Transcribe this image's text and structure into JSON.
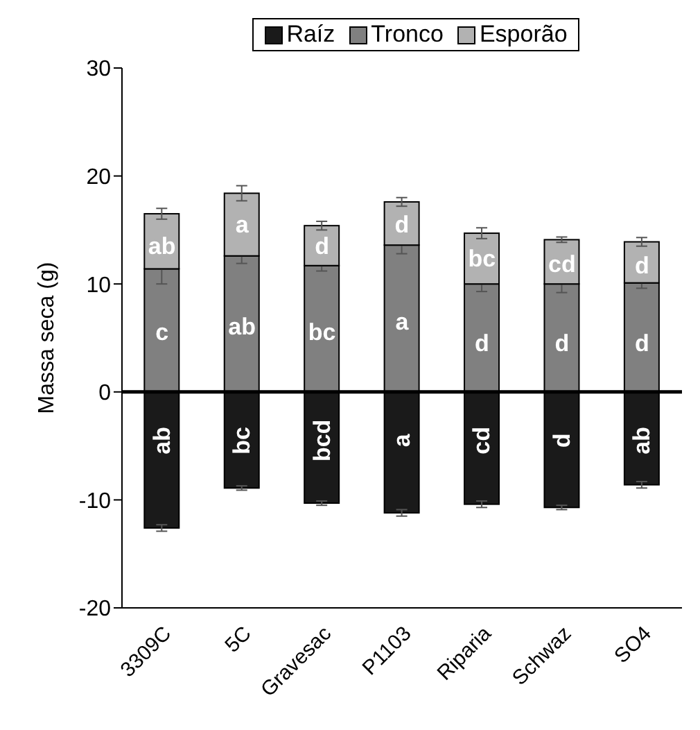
{
  "chart_data": {
    "type": "bar",
    "stacked": true,
    "categories": [
      "3309C",
      "5C",
      "Gravesac",
      "P1103",
      "Riparia",
      "Schwaz",
      "SO4"
    ],
    "series": [
      {
        "name": "Raíz",
        "color": "#1a1a1a",
        "values": [
          -12.6,
          -8.9,
          -10.3,
          -11.2,
          -10.4,
          -10.7,
          -8.6
        ],
        "errors": [
          0.3,
          0.2,
          0.2,
          0.3,
          0.3,
          0.2,
          0.3
        ]
      },
      {
        "name": "Tronco",
        "color": "#808080",
        "values": [
          11.4,
          12.6,
          11.7,
          13.6,
          10.0,
          10.0,
          10.1
        ],
        "errors": [
          1.4,
          0.7,
          0.5,
          0.8,
          0.7,
          0.8,
          0.5
        ]
      },
      {
        "name": "Esporão",
        "color": "#b2b2b2",
        "values": [
          5.1,
          5.8,
          3.7,
          4.0,
          4.7,
          4.1,
          3.8
        ],
        "errors": [
          0.5,
          0.7,
          0.4,
          0.4,
          0.5,
          0.25,
          0.4
        ]
      }
    ],
    "ylabel": "Massa seca (g)",
    "ylim": [
      -20,
      30
    ],
    "yticks": [
      -20,
      -10,
      0,
      10,
      20,
      30
    ],
    "legend": "top",
    "ref_lines": [
      {
        "axis": "y",
        "value": 0,
        "color": "#000000"
      }
    ],
    "annotations": [
      {
        "text": "ab",
        "x": "3309C",
        "y": -4.5
      },
      {
        "text": "bc",
        "x": "5C",
        "y": -4.5
      },
      {
        "text": "bcd",
        "x": "Gravesac",
        "y": -4.5
      },
      {
        "text": "a",
        "x": "P1103",
        "y": -4.5
      },
      {
        "text": "cd",
        "x": "Riparia",
        "y": -4.5
      },
      {
        "text": "d",
        "x": "Schwaz",
        "y": -4.5
      },
      {
        "text": "ab",
        "x": "SO4",
        "y": -4.5
      },
      {
        "text": "c",
        "x": "3309C",
        "y": 5.5
      },
      {
        "text": "ab",
        "x": "5C",
        "y": 6
      },
      {
        "text": "bc",
        "x": "Gravesac",
        "y": 5.5
      },
      {
        "text": "a",
        "x": "P1103",
        "y": 6.5
      },
      {
        "text": "d",
        "x": "Riparia",
        "y": 4.5
      },
      {
        "text": "d",
        "x": "Schwaz",
        "y": 4.5
      },
      {
        "text": "d",
        "x": "SO4",
        "y": 4.5
      },
      {
        "text": "ab",
        "x": "3309C",
        "y": 13.5
      },
      {
        "text": "a",
        "x": "5C",
        "y": 15.5
      },
      {
        "text": "d",
        "x": "Gravesac",
        "y": 13.5
      },
      {
        "text": "d",
        "x": "P1103",
        "y": 15.5
      },
      {
        "text": "bc",
        "x": "Riparia",
        "y": 12.3
      },
      {
        "text": "cd",
        "x": "Schwaz",
        "y": 11.8
      },
      {
        "text": "d",
        "x": "SO4",
        "y": 11.7
      }
    ]
  }
}
